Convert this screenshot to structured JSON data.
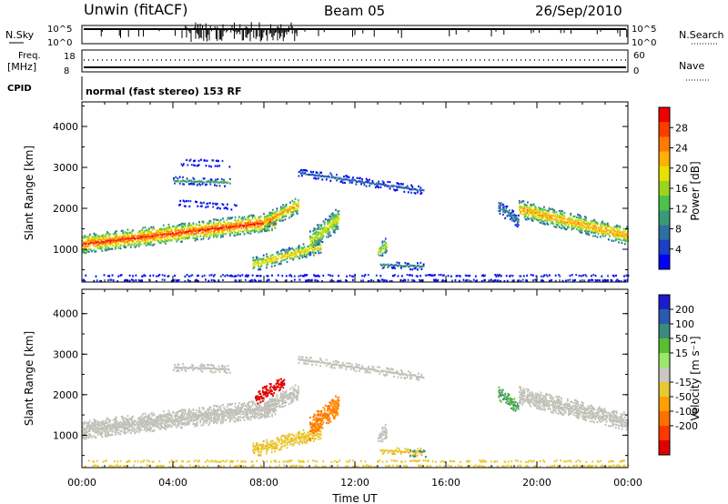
{
  "header": {
    "station": "Unwin (fitACF)",
    "beam": "Beam 05",
    "date": "26/Sep/2010"
  },
  "status_panels": {
    "nsky_label": "N.Sky",
    "nsky_ticks": [
      "10^5",
      "10^0"
    ],
    "nsearch_label": "N.Search",
    "nsearch_ticks": [
      "10^5",
      "10^0"
    ],
    "freq_label_1": "Freq.",
    "freq_label_2": "[MHz]",
    "freq_ticks": [
      "18",
      "8"
    ],
    "nave_label": "Nave",
    "nave_ticks": [
      "60",
      "0"
    ],
    "cpid_label": "CPID",
    "cpid_text": "normal (fast stereo) 153 RF"
  },
  "colors": {
    "power": [
      "#0000ff",
      "#1a3fc8",
      "#2d6fa0",
      "#3a9a78",
      "#4cc24c",
      "#9bd41c",
      "#e8e000",
      "#ffb000",
      "#ff7a00",
      "#ff3c00",
      "#f00000"
    ],
    "velocity": [
      "#1c1ccc",
      "#2a5ab0",
      "#3a8a80",
      "#58c030",
      "#9be86a",
      "#c8c8c0",
      "#e8c830",
      "#ffa000",
      "#ff7000",
      "#ff3800",
      "#e00000"
    ],
    "ground_scatter": "#c0c0b8"
  },
  "chart_data": [
    {
      "type": "heatmap",
      "name": "power",
      "ylabel": "Slant Range [km]",
      "yticks": [
        "1000",
        "2000",
        "3000",
        "4000"
      ],
      "ylim": [
        200,
        4600
      ],
      "xlim": [
        0,
        24
      ],
      "colorbar": {
        "label": "Power [dB]",
        "ticks": [
          "4",
          "8",
          "12",
          "16",
          "20",
          "24",
          "28"
        ],
        "range": [
          0,
          32
        ]
      },
      "regions": [
        {
          "x0": 0.0,
          "x1": 8.5,
          "y_start": 1150,
          "y_end": 1700,
          "thick": 420,
          "peak": 26
        },
        {
          "x0": 8.0,
          "x1": 9.5,
          "y_start": 1700,
          "y_end": 2100,
          "thick": 350,
          "peak": 22
        },
        {
          "x0": 4.0,
          "x1": 6.5,
          "y_start": 2700,
          "y_end": 2650,
          "thick": 150,
          "peak": 10
        },
        {
          "x0": 4.3,
          "x1": 6.5,
          "y_start": 3150,
          "y_end": 3100,
          "thick": 120,
          "peak": 8
        },
        {
          "x0": 4.2,
          "x1": 6.8,
          "y_start": 2150,
          "y_end": 2050,
          "thick": 100,
          "peak": 8
        },
        {
          "x0": 7.5,
          "x1": 10.5,
          "y_start": 650,
          "y_end": 1100,
          "thick": 300,
          "peak": 20
        },
        {
          "x0": 10.0,
          "x1": 11.3,
          "y_start": 1200,
          "y_end": 1800,
          "thick": 500,
          "peak": 18
        },
        {
          "x0": 13.0,
          "x1": 13.4,
          "y_start": 950,
          "y_end": 1150,
          "thick": 350,
          "peak": 16
        },
        {
          "x0": 13.1,
          "x1": 15.0,
          "y_start": 650,
          "y_end": 600,
          "thick": 140,
          "peak": 8
        },
        {
          "x0": 9.5,
          "x1": 15.0,
          "y_start": 2900,
          "y_end": 2450,
          "thick": 150,
          "peak": 6
        },
        {
          "x0": 19.2,
          "x1": 24.0,
          "y_start": 2000,
          "y_end": 1350,
          "thick": 400,
          "peak": 22
        },
        {
          "x0": 18.3,
          "x1": 19.2,
          "y_start": 2050,
          "y_end": 1700,
          "thick": 300,
          "peak": 8
        },
        {
          "x0": 0.0,
          "x1": 24.0,
          "y_start": 320,
          "y_end": 320,
          "thick": 120,
          "peak": 6
        }
      ]
    },
    {
      "type": "heatmap",
      "name": "velocity",
      "ylabel": "Slant Range [km]",
      "yticks": [
        "1000",
        "2000",
        "3000",
        "4000"
      ],
      "ylim": [
        200,
        4600
      ],
      "xlim": [
        0,
        24
      ],
      "xticks": [
        "00:00",
        "04:00",
        "08:00",
        "12:00",
        "16:00",
        "20:00",
        "00:00"
      ],
      "xlabel": "Time UT",
      "colorbar": {
        "label": "Velocity [m s⁻¹]",
        "ticks": [
          "200",
          "100",
          "50",
          "15",
          "-15",
          "-50",
          "-100",
          "-200"
        ],
        "range": [
          -250,
          250
        ]
      },
      "regions": [
        {
          "x0": 0.0,
          "x1": 8.5,
          "y_start": 1150,
          "y_end": 1700,
          "thick": 420,
          "v": 0
        },
        {
          "x0": 8.0,
          "x1": 9.5,
          "y_start": 1700,
          "y_end": 2100,
          "thick": 350,
          "v": 0
        },
        {
          "x0": 7.6,
          "x1": 8.9,
          "y_start": 1950,
          "y_end": 2300,
          "thick": 300,
          "v": -220
        },
        {
          "x0": 4.0,
          "x1": 6.5,
          "y_start": 2700,
          "y_end": 2650,
          "thick": 150,
          "v": 0
        },
        {
          "x0": 7.5,
          "x1": 10.5,
          "y_start": 650,
          "y_end": 1100,
          "thick": 300,
          "v": -40
        },
        {
          "x0": 10.0,
          "x1": 11.3,
          "y_start": 1200,
          "y_end": 1800,
          "thick": 500,
          "v": -110
        },
        {
          "x0": 13.0,
          "x1": 13.4,
          "y_start": 950,
          "y_end": 1150,
          "thick": 350,
          "v": 0
        },
        {
          "x0": 13.1,
          "x1": 15.0,
          "y_start": 650,
          "y_end": 600,
          "thick": 140,
          "v": -40
        },
        {
          "x0": 14.4,
          "x1": 15.1,
          "y_start": 580,
          "y_end": 560,
          "thick": 120,
          "v": 60
        },
        {
          "x0": 9.5,
          "x1": 15.0,
          "y_start": 2900,
          "y_end": 2450,
          "thick": 150,
          "v": 0
        },
        {
          "x0": 19.2,
          "x1": 24.0,
          "y_start": 2000,
          "y_end": 1350,
          "thick": 400,
          "v": 0
        },
        {
          "x0": 18.3,
          "x1": 19.2,
          "y_start": 2050,
          "y_end": 1700,
          "thick": 300,
          "v": 50
        },
        {
          "x0": 0.0,
          "x1": 24.0,
          "y_start": 320,
          "y_end": 320,
          "thick": 120,
          "v": -30
        }
      ]
    }
  ]
}
